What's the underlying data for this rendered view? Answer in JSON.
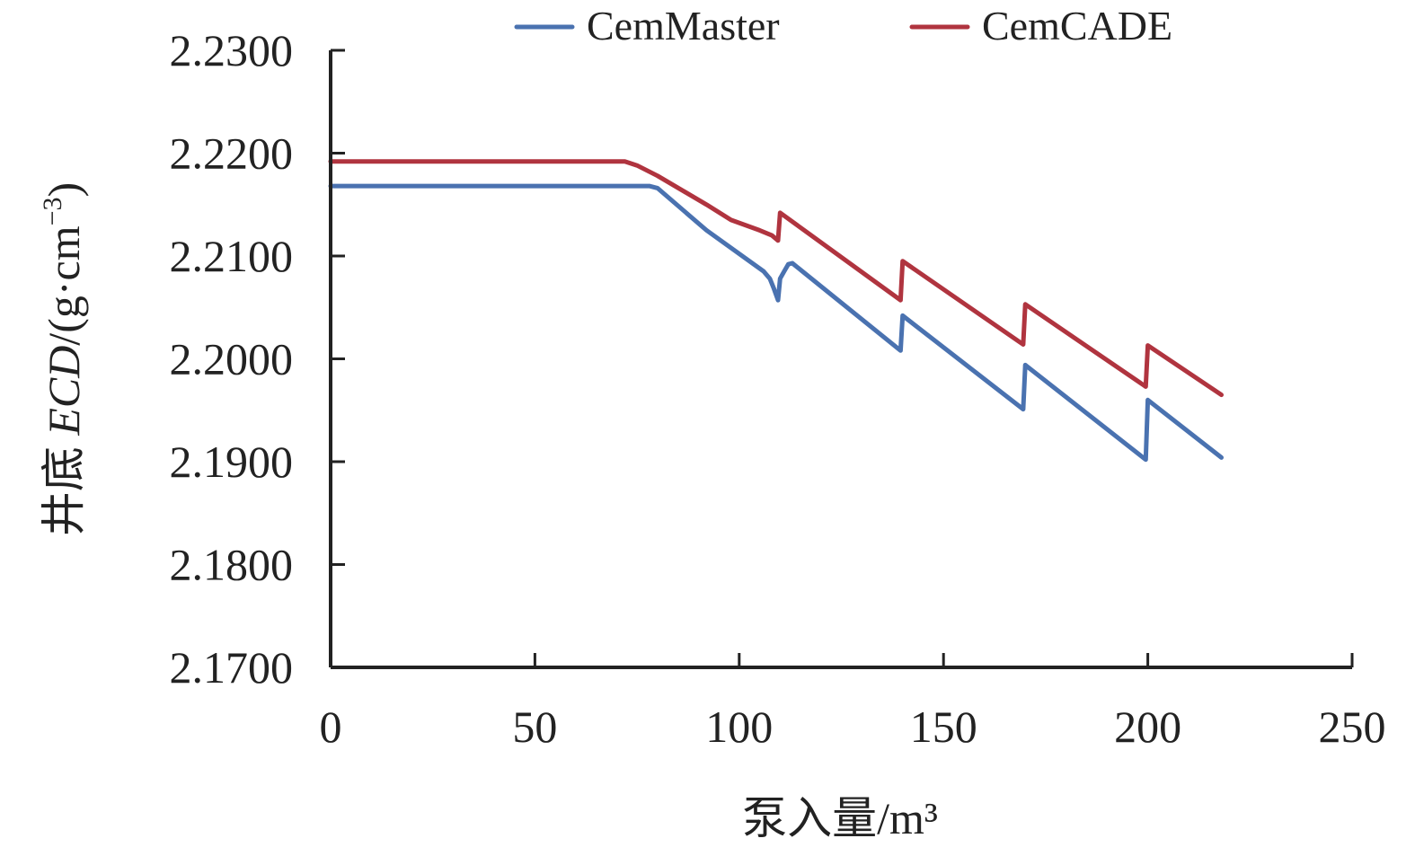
{
  "chart_data": {
    "type": "line",
    "title": "",
    "xlabel": "泵入量/m³",
    "ylabel_parts": {
      "prefix": "井底 ",
      "italic": "ECD",
      "unit": "/(g·cm",
      "superscript": "−3",
      "suffix": ")"
    },
    "xlim": [
      0,
      250
    ],
    "ylim": [
      2.17,
      2.23
    ],
    "x_ticks": [
      0,
      50,
      100,
      150,
      200,
      250
    ],
    "y_ticks": [
      2.17,
      2.18,
      2.19,
      2.2,
      2.21,
      2.22,
      2.23
    ],
    "x_tick_labels": [
      "0",
      "50",
      "100",
      "150",
      "200",
      "250"
    ],
    "y_tick_labels": [
      "2.1700",
      "2.1800",
      "2.1900",
      "2.2000",
      "2.2100",
      "2.2200",
      "2.2300"
    ],
    "grid": false,
    "legend_position": "top",
    "series": [
      {
        "name": "CemMaster",
        "color": "#4a72b0",
        "points": [
          [
            0,
            2.2168
          ],
          [
            78,
            2.2168
          ],
          [
            80,
            2.2166
          ],
          [
            92,
            2.2125
          ],
          [
            106,
            2.2085
          ],
          [
            107.5,
            2.2078
          ],
          [
            108.5,
            2.2068
          ],
          [
            109.5,
            2.2057
          ],
          [
            110,
            2.2078
          ],
          [
            111,
            2.2085
          ],
          [
            112,
            2.2092
          ],
          [
            113,
            2.2093
          ],
          [
            139.5,
            2.2008
          ],
          [
            140,
            2.2042
          ],
          [
            169.5,
            2.1951
          ],
          [
            170,
            2.1994
          ],
          [
            199.5,
            2.1902
          ],
          [
            200,
            2.196
          ],
          [
            218,
            2.1904
          ]
        ]
      },
      {
        "name": "CemCADE",
        "color": "#b0343f",
        "points": [
          [
            0,
            2.2192
          ],
          [
            72,
            2.2192
          ],
          [
            75,
            2.2188
          ],
          [
            80,
            2.2178
          ],
          [
            92,
            2.215
          ],
          [
            98,
            2.2135
          ],
          [
            105,
            2.2125
          ],
          [
            108,
            2.212
          ],
          [
            109.5,
            2.2115
          ],
          [
            110,
            2.2142
          ],
          [
            139.5,
            2.2057
          ],
          [
            140,
            2.2095
          ],
          [
            169.5,
            2.2014
          ],
          [
            170,
            2.2053
          ],
          [
            199.5,
            2.1973
          ],
          [
            200,
            2.2013
          ],
          [
            218,
            2.1965
          ]
        ]
      }
    ]
  }
}
